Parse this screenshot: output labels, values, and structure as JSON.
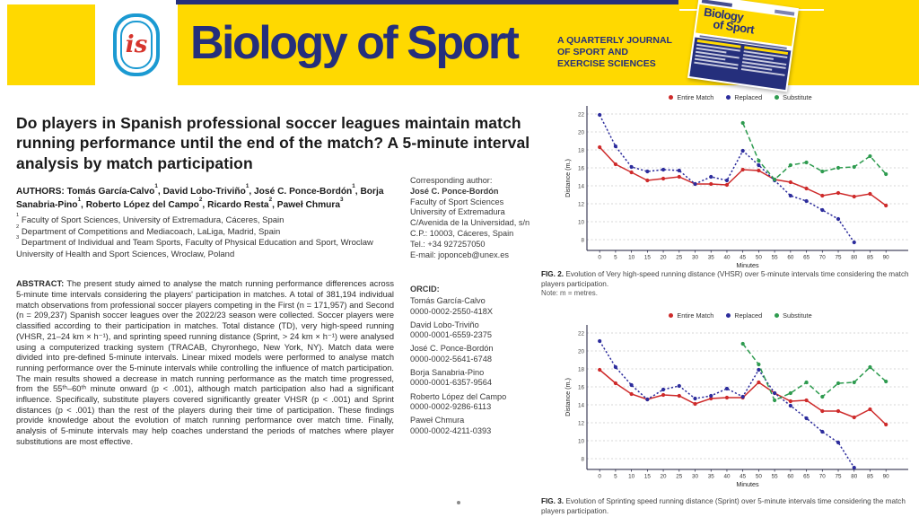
{
  "banner": {
    "journal_title": "Biology of Sport",
    "tagline_lines": [
      "A QUARTERLY JOURNAL",
      "OF SPORT AND",
      "EXERCISE SCIENCES"
    ],
    "logo_text": "is",
    "cover_title_line1": "Biology",
    "cover_title_line2": "of Sport",
    "colors": {
      "yellow": "#FFD900",
      "navy": "#252F7C",
      "logo_blue": "#1B9AD2",
      "logo_red": "#D6342C"
    }
  },
  "article": {
    "title": "Do players in Spanish professional soccer leagues maintain match running performance until the end of the match? A 5-minute interval analysis by match participation",
    "authors_label": "AUTHORS:",
    "authors": [
      {
        "name": "Tomás García-Calvo",
        "sup": "1"
      },
      {
        "name": "David Lobo-Triviño",
        "sup": "1"
      },
      {
        "name": "José C. Ponce-Bordón",
        "sup": "1"
      },
      {
        "name": "Borja Sanabria-Pino",
        "sup": "1"
      },
      {
        "name": "Roberto López del Campo",
        "sup": "2"
      },
      {
        "name": "Ricardo Resta",
        "sup": "2"
      },
      {
        "name": "Paweł Chmura",
        "sup": "3"
      }
    ],
    "affiliations": [
      {
        "sup": "1",
        "text": "Faculty of Sport Sciences, University of Extremadura, Cáceres, Spain"
      },
      {
        "sup": "2",
        "text": "Department of Competitions and Mediacoach, LaLiga, Madrid, Spain"
      },
      {
        "sup": "3",
        "text": "Department of Individual and Team Sports, Faculty of Physical Education and Sport, Wroclaw University of Health and Sport Sciences, Wroclaw, Poland"
      }
    ],
    "abstract_label": "ABSTRACT:",
    "abstract": "The present study aimed to analyse the match running performance differences across 5-minute time intervals considering the players' participation in matches. A total of 381,194 individual match observations from professional soccer players competing in the First (n = 171,957) and Second (n = 209,237) Spanish soccer leagues over the 2022/23 season were collected. Soccer players were classified according to their participation in matches. Total distance (TD), very high-speed running (VHSR, 21–24 km × h⁻¹), and sprinting speed running distance (Sprint, > 24 km × h⁻¹) were analysed using a computerized tracking system (TRACAB, Chyronhego, New York, NY). Match data were divided into pre-defined 5-minute intervals. Linear mixed models were performed to analyse match running performance over the 5-minute intervals while controlling the influence of match participation. The main results showed a decrease in match running performance as the match time progressed, from the 55ᵗʰ–60ᵗʰ minute onward (p < .001), although match participation also had a significant influence. Specifically, substitute players covered significantly greater VHSR (p < .001) and Sprint distances (p < .001) than the rest of the players during their time of participation. These findings provide knowledge about the evolution of match running performance over match time. Finally, analysis of 5-minute intervals may help coaches understand the periods of matches where player substitutions are most effective."
  },
  "corresponding": {
    "label": "Corresponding author:",
    "name": "José C. Ponce-Bordón",
    "lines": [
      "Faculty of Sport Sciences",
      "University of Extremadura",
      "C/Avenida de la Universidad, s/n",
      "C.P.: 10003, Cáceres, Spain",
      "Tel.: +34 927257050",
      "E-mail: joponceb@unex.es"
    ]
  },
  "orcid": {
    "label": "ORCID:",
    "entries": [
      {
        "name": "Tomás García-Calvo",
        "id": "0000-0002-2550-418X"
      },
      {
        "name": "David Lobo-Triviño",
        "id": "0000-0001-6559-2375"
      },
      {
        "name": "José C. Ponce-Bordón",
        "id": "0000-0002-5641-6748"
      },
      {
        "name": "Borja Sanabria-Pino",
        "id": "0000-0001-6357-9564"
      },
      {
        "name": "Roberto López del Campo",
        "id": "0000-0002-9286-6113"
      },
      {
        "name": "Paweł Chmura",
        "id": "0000-0002-4211-0393"
      }
    ]
  },
  "figures": [
    {
      "label": "FIG. 2.",
      "caption": "Evolution of Very high-speed running distance (VHSR) over 5-minute intervals time considering the match players participation.",
      "note": "Note: m = metres."
    },
    {
      "label": "FIG. 3.",
      "caption": "Evolution of Sprinting speed running distance (Sprint) over 5-minute intervals time considering the match players participation.",
      "note": ""
    }
  ],
  "chart_data": [
    {
      "type": "line",
      "title": "",
      "xlabel": "Minutes",
      "ylabel": "Distance (m.)",
      "x": [
        0,
        5,
        10,
        15,
        20,
        25,
        30,
        35,
        40,
        45,
        50,
        55,
        60,
        65,
        70,
        75,
        80,
        85,
        90
      ],
      "yticks": [
        8,
        10,
        12,
        14,
        16,
        18,
        20,
        22
      ],
      "ylim": [
        8,
        22
      ],
      "grid": true,
      "legend_position": "top",
      "series": [
        {
          "name": "Entire Match",
          "color": "#CE2A2A",
          "style": "solid",
          "values": [
            18.3,
            16.4,
            15.5,
            14.6,
            14.8,
            15.0,
            14.2,
            14.2,
            14.1,
            15.8,
            15.7,
            14.7,
            14.4,
            13.7,
            12.9,
            13.2,
            12.8,
            13.1,
            11.8
          ]
        },
        {
          "name": "Replaced",
          "color": "#2C2C9C",
          "style": "dotted",
          "values": [
            21.9,
            18.4,
            16.1,
            15.6,
            15.8,
            15.7,
            14.2,
            15.0,
            14.6,
            17.9,
            16.3,
            14.6,
            12.9,
            12.3,
            11.3,
            10.3,
            7.7,
            null,
            null
          ]
        },
        {
          "name": "Substitute",
          "color": "#2E9B4F",
          "style": "dashed",
          "values": [
            null,
            null,
            null,
            null,
            null,
            null,
            null,
            null,
            null,
            21.0,
            16.8,
            14.7,
            16.3,
            16.6,
            15.6,
            16.0,
            16.1,
            17.3,
            15.3
          ]
        }
      ]
    },
    {
      "type": "line",
      "title": "",
      "xlabel": "Minutes",
      "ylabel": "Distance (m.)",
      "x": [
        0,
        5,
        10,
        15,
        20,
        25,
        30,
        35,
        40,
        45,
        50,
        55,
        60,
        65,
        70,
        75,
        80,
        85,
        90
      ],
      "yticks": [
        8,
        10,
        12,
        14,
        16,
        18,
        20,
        22
      ],
      "ylim": [
        8,
        22
      ],
      "grid": true,
      "legend_position": "top",
      "series": [
        {
          "name": "Entire Match",
          "color": "#CE2A2A",
          "style": "solid",
          "values": [
            17.9,
            16.4,
            15.2,
            14.6,
            15.1,
            15.0,
            14.1,
            14.7,
            14.8,
            14.8,
            16.5,
            15.3,
            14.4,
            14.5,
            13.3,
            13.3,
            12.6,
            13.5,
            11.8
          ]
        },
        {
          "name": "Replaced",
          "color": "#2C2C9C",
          "style": "dotted",
          "values": [
            21.1,
            18.2,
            16.2,
            14.6,
            15.7,
            16.1,
            14.7,
            15.0,
            15.8,
            14.9,
            17.9,
            15.3,
            13.9,
            12.5,
            11.0,
            9.8,
            7.0,
            null,
            null
          ]
        },
        {
          "name": "Substitute",
          "color": "#2E9B4F",
          "style": "dashed",
          "values": [
            null,
            null,
            null,
            null,
            null,
            null,
            null,
            null,
            null,
            20.8,
            18.5,
            14.5,
            15.3,
            16.5,
            14.9,
            16.4,
            16.5,
            18.2,
            16.6
          ]
        }
      ]
    }
  ]
}
